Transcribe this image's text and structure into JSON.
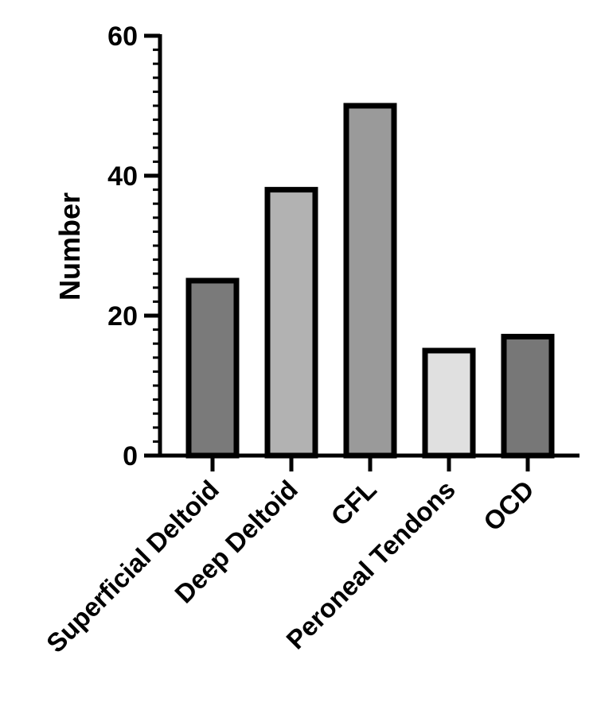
{
  "chart_data": {
    "type": "bar",
    "categories": [
      "Superficial Deltoid",
      "Deep Deltoid",
      "CFL",
      "Peroneal Tendons",
      "OCD"
    ],
    "values": [
      25,
      38,
      50,
      15,
      17
    ],
    "bar_colors": [
      "#7a7a7a",
      "#b2b2b2",
      "#9a9a9a",
      "#e0e0e0",
      "#777777"
    ],
    "ylabel": "Number",
    "xlabel": "",
    "title": "",
    "ylim": [
      0,
      60
    ],
    "yticks": [
      "0",
      "20",
      "40",
      "60"
    ],
    "grid": false,
    "legend": "none"
  }
}
